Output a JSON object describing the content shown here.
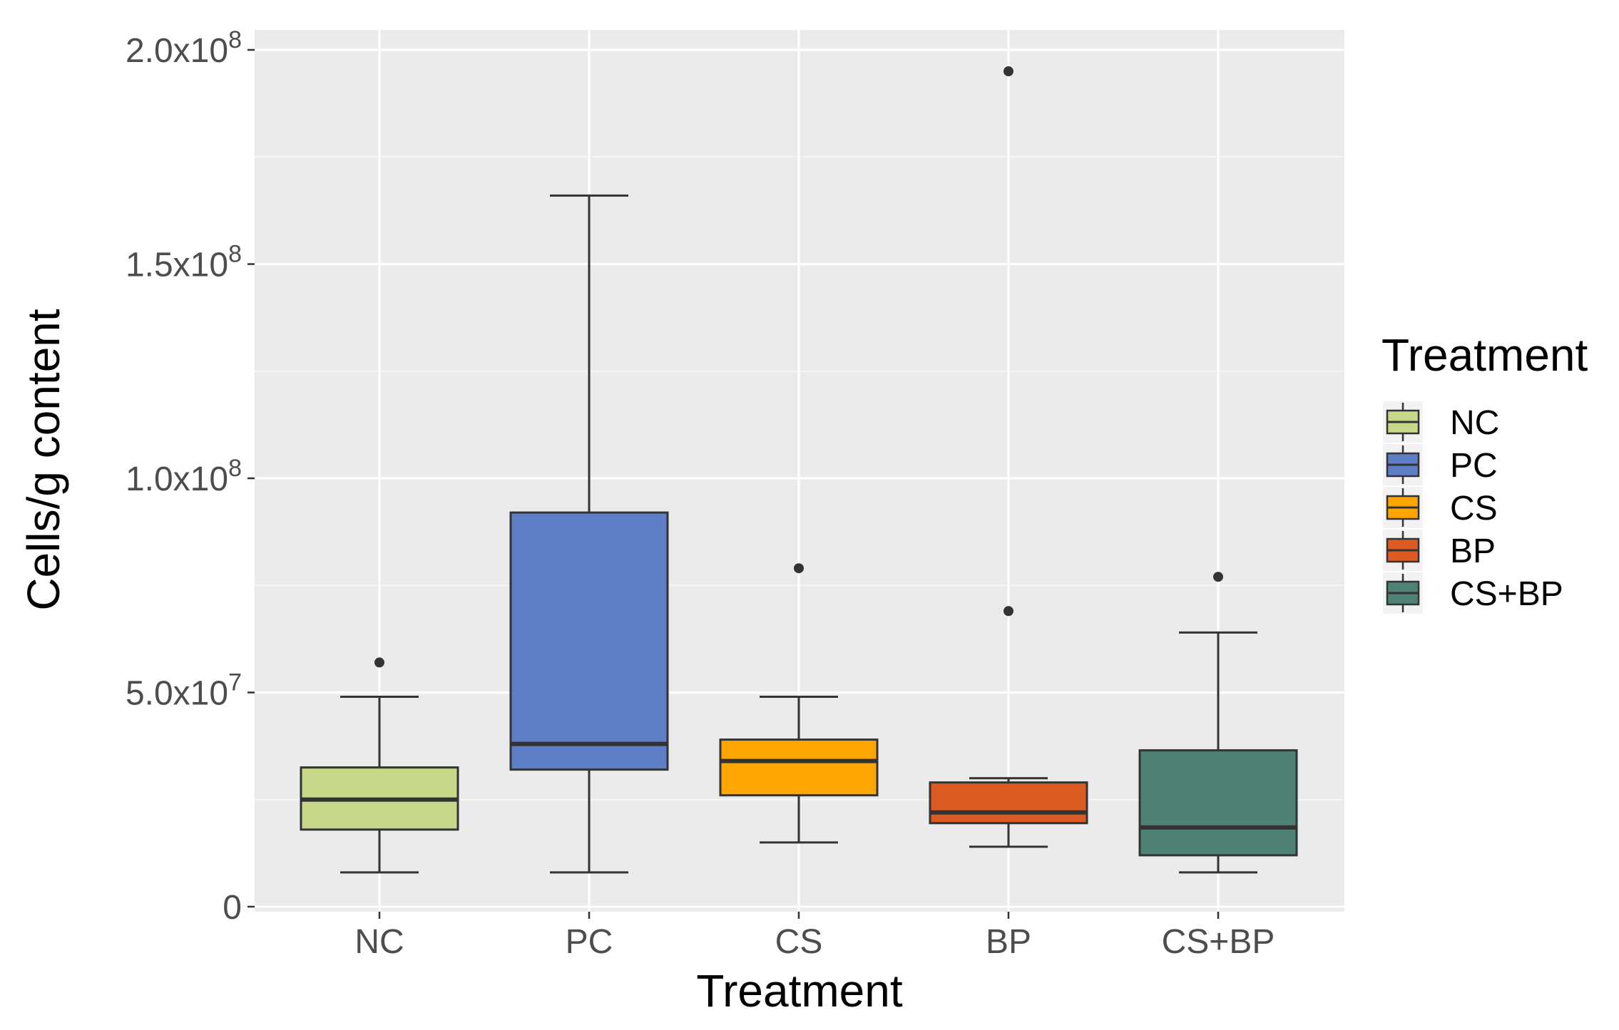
{
  "chart_data": {
    "type": "box",
    "xlabel": "Treatment",
    "ylabel": "Cells/g content",
    "ylim": [
      0,
      200000000
    ],
    "y_ticks": [
      {
        "value": 0,
        "mantissa": "0",
        "exp": ""
      },
      {
        "value": 50000000,
        "mantissa": "5.0x10",
        "exp": "7"
      },
      {
        "value": 100000000,
        "mantissa": "1.0x10",
        "exp": "8"
      },
      {
        "value": 150000000,
        "mantissa": "1.5x10",
        "exp": "8"
      },
      {
        "value": 200000000,
        "mantissa": "2.0x10",
        "exp": "8"
      }
    ],
    "grid": true,
    "legend": {
      "title": "Treatment",
      "position": "right"
    },
    "categories": [
      "NC",
      "PC",
      "CS",
      "BP",
      "CS+BP"
    ],
    "series": [
      {
        "name": "NC",
        "color": "#c8d88a",
        "whisker_low": 8000000,
        "q1": 18000000,
        "median": 25000000,
        "q3": 32500000,
        "whisker_high": 49000000,
        "outliers": [
          57000000
        ]
      },
      {
        "name": "PC",
        "color": "#5f7ec8",
        "whisker_low": 8000000,
        "q1": 32000000,
        "median": 38000000,
        "q3": 92000000,
        "whisker_high": 166000000,
        "outliers": []
      },
      {
        "name": "CS",
        "color": "#ffa500",
        "whisker_low": 15000000,
        "q1": 26000000,
        "median": 34000000,
        "q3": 39000000,
        "whisker_high": 49000000,
        "outliers": [
          79000000
        ]
      },
      {
        "name": "BP",
        "color": "#dd5a22",
        "whisker_low": 14000000,
        "q1": 19500000,
        "median": 22000000,
        "q3": 29000000,
        "whisker_high": 30000000,
        "outliers": [
          69000000,
          195000000
        ]
      },
      {
        "name": "CS+BP",
        "color": "#4e8274",
        "whisker_low": 8000000,
        "q1": 12000000,
        "median": 18500000,
        "q3": 36500000,
        "whisker_high": 64000000,
        "outliers": [
          77000000
        ]
      }
    ]
  }
}
